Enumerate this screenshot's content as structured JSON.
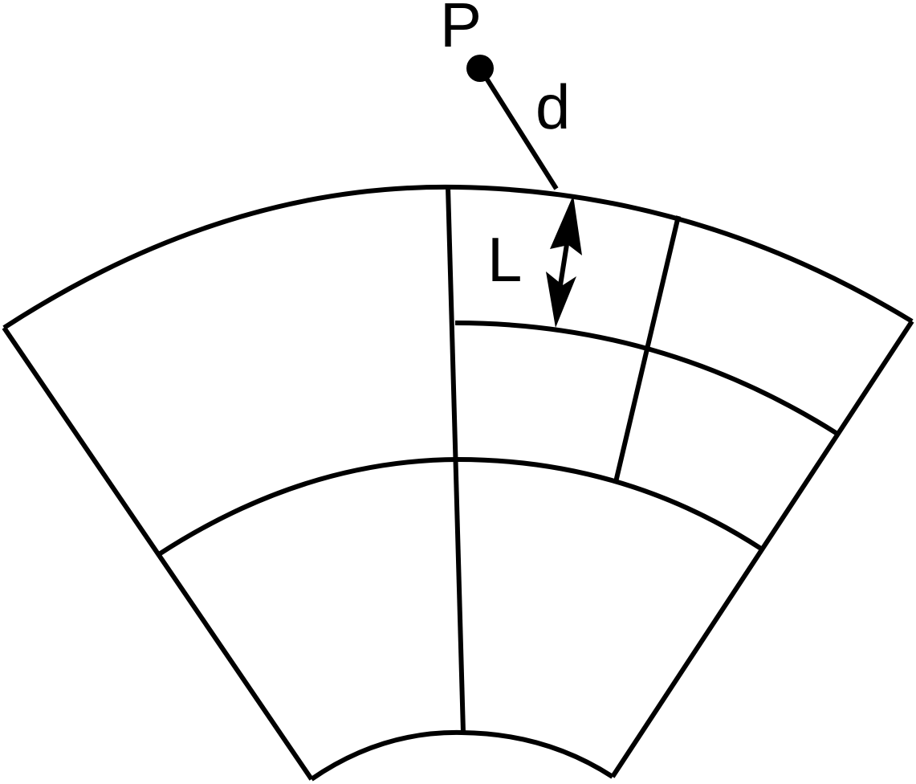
{
  "labels": {
    "point": "P",
    "distance": "d",
    "cell_size": "L"
  },
  "colors": {
    "stroke": "#000000",
    "background": "#ffffff"
  }
}
